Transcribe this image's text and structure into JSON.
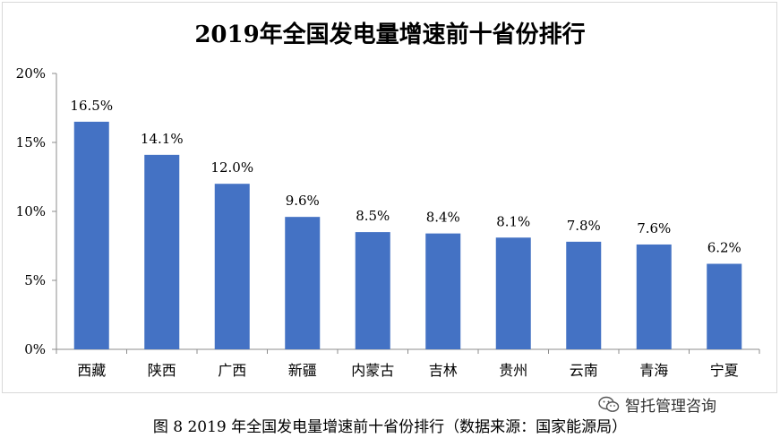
{
  "chart_data": {
    "type": "bar",
    "title": "2019年全国发电量增速前十省份排行",
    "xlabel": "",
    "ylabel": "",
    "categories": [
      "西藏",
      "陕西",
      "广西",
      "新疆",
      "内蒙古",
      "吉林",
      "贵州",
      "云南",
      "青海",
      "宁夏"
    ],
    "values": [
      16.5,
      14.1,
      12.0,
      9.6,
      8.5,
      8.4,
      8.1,
      7.8,
      7.6,
      6.2
    ],
    "data_labels": [
      "16.5%",
      "14.1%",
      "12.0%",
      "9.6%",
      "8.5%",
      "8.4%",
      "8.1%",
      "7.8%",
      "7.6%",
      "6.2%"
    ],
    "ylim": [
      0,
      20
    ],
    "yticks": [
      0,
      5,
      10,
      15,
      20
    ],
    "ytick_labels": [
      "0%",
      "5%",
      "10%",
      "15%",
      "20%"
    ],
    "bar_color": "#4472c4",
    "grid": false,
    "legend": "none"
  },
  "caption": "图 8 2019 年全国发电量增速前十省份排行（数据来源：国家能源局）",
  "watermark": {
    "text": "智托管理咨询",
    "icon": "wechat-icon"
  }
}
